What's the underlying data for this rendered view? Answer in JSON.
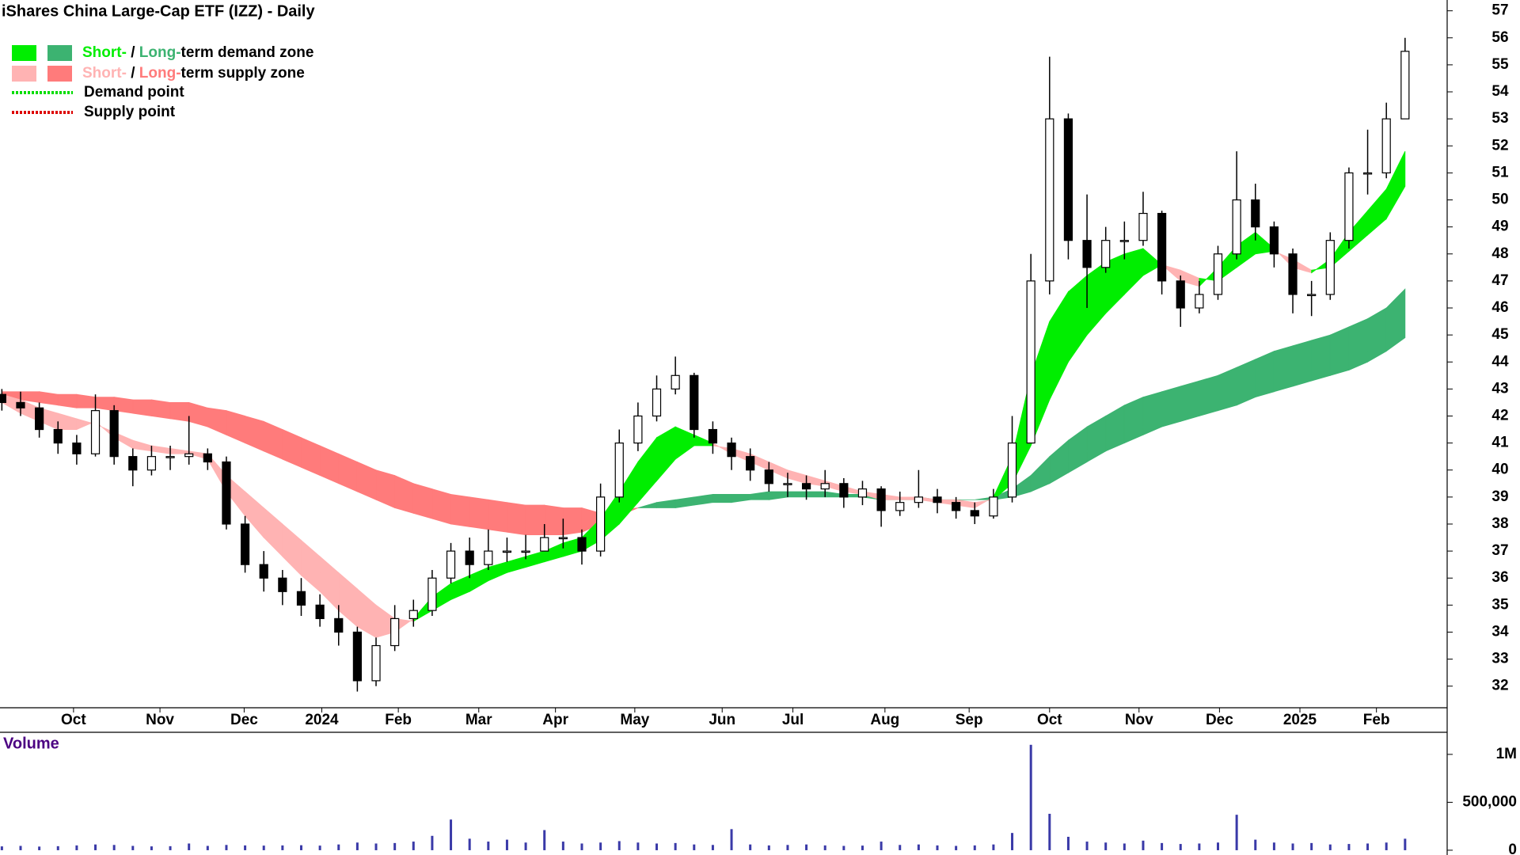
{
  "chart_data": {
    "type": "candlestick",
    "title": "iShares China Large-Cap ETF (IZZ) - Daily",
    "open": [
      42.8,
      42.5,
      42.3,
      41.5,
      41.0,
      40.6,
      42.2,
      40.5,
      40.0,
      40.5,
      40.5,
      40.6,
      40.3,
      38.0,
      36.5,
      36.0,
      35.5,
      35.0,
      34.5,
      34.0,
      32.2,
      33.5,
      34.5,
      34.8,
      36.0,
      37.0,
      36.5,
      37.0,
      37.0,
      37.0,
      37.5,
      37.5,
      37.0,
      39.0,
      41.0,
      42.0,
      43.0,
      43.5,
      41.5,
      41.0,
      40.5,
      40.0,
      39.5,
      39.5,
      39.3,
      39.5,
      39.0,
      39.3,
      38.5,
      38.8,
      39.0,
      38.8,
      38.5,
      38.3,
      39.0,
      41.0,
      47.0,
      53.0,
      48.5,
      47.5,
      48.5,
      48.5,
      49.5,
      47.0,
      46.0,
      46.5,
      48.0,
      50.0,
      49.0,
      48.0,
      46.5,
      46.5,
      48.5,
      51.0,
      51.0,
      53.0
    ],
    "high": [
      43.0,
      42.9,
      42.5,
      41.8,
      41.3,
      42.8,
      42.4,
      40.8,
      40.9,
      40.9,
      42.0,
      40.8,
      40.5,
      38.3,
      37.0,
      36.3,
      36.0,
      35.4,
      35.0,
      34.2,
      33.8,
      35.0,
      35.2,
      36.3,
      37.3,
      37.5,
      37.8,
      37.5,
      37.6,
      38.0,
      38.2,
      37.8,
      39.5,
      41.5,
      42.5,
      43.5,
      44.2,
      43.6,
      41.8,
      41.2,
      40.8,
      40.3,
      39.9,
      39.8,
      40.0,
      39.7,
      39.6,
      39.4,
      39.2,
      40.0,
      39.3,
      39.0,
      38.8,
      39.3,
      42.0,
      48.0,
      55.3,
      53.2,
      50.2,
      49.0,
      49.2,
      50.3,
      49.6,
      47.2,
      47.0,
      48.3,
      51.8,
      50.6,
      49.2,
      48.2,
      47.0,
      48.8,
      51.2,
      52.6,
      53.6,
      56.0
    ],
    "low": [
      42.2,
      42.0,
      41.2,
      40.6,
      40.2,
      40.5,
      40.2,
      39.4,
      39.8,
      40.0,
      40.2,
      40.0,
      37.8,
      36.2,
      35.5,
      35.0,
      34.6,
      34.2,
      33.5,
      31.8,
      32.0,
      33.3,
      34.2,
      34.6,
      35.8,
      36.0,
      36.3,
      36.6,
      36.7,
      37.0,
      37.1,
      36.5,
      36.8,
      38.8,
      40.7,
      41.8,
      42.8,
      41.2,
      40.6,
      40.0,
      39.6,
      39.2,
      39.0,
      38.9,
      39.0,
      38.6,
      38.7,
      37.9,
      38.3,
      38.6,
      38.4,
      38.2,
      38.0,
      38.2,
      38.8,
      41.0,
      46.5,
      47.8,
      46.0,
      47.3,
      47.8,
      48.3,
      46.5,
      45.3,
      45.8,
      46.3,
      47.8,
      48.5,
      47.5,
      45.8,
      45.7,
      46.3,
      48.2,
      50.2,
      50.8,
      53.0
    ],
    "close": [
      42.5,
      42.3,
      41.5,
      41.0,
      40.6,
      42.2,
      40.5,
      40.0,
      40.5,
      40.5,
      40.6,
      40.3,
      38.0,
      36.5,
      36.0,
      35.5,
      35.0,
      34.5,
      34.0,
      32.2,
      33.5,
      34.5,
      34.8,
      36.0,
      37.0,
      36.5,
      37.0,
      37.0,
      37.0,
      37.5,
      37.5,
      37.0,
      39.0,
      41.0,
      42.0,
      43.0,
      43.5,
      41.5,
      41.0,
      40.5,
      40.0,
      39.5,
      39.5,
      39.3,
      39.5,
      39.0,
      39.3,
      38.5,
      38.8,
      39.0,
      38.8,
      38.5,
      38.3,
      39.0,
      41.0,
      47.0,
      53.0,
      48.5,
      47.5,
      48.5,
      48.5,
      49.5,
      47.0,
      46.0,
      46.5,
      48.0,
      50.0,
      49.0,
      48.0,
      46.5,
      46.5,
      48.5,
      51.0,
      51.0,
      53.0,
      55.5
    ],
    "zones": {
      "long": {
        "fast": [
          42.7,
          42.6,
          42.5,
          42.4,
          42.3,
          42.3,
          42.2,
          42.1,
          42.0,
          41.9,
          41.8,
          41.6,
          41.3,
          41.0,
          40.7,
          40.4,
          40.1,
          39.8,
          39.5,
          39.2,
          38.9,
          38.6,
          38.4,
          38.2,
          38.0,
          37.9,
          37.8,
          37.7,
          37.6,
          37.6,
          37.6,
          37.7,
          38.0,
          38.3,
          38.6,
          38.8,
          38.9,
          39.0,
          39.1,
          39.1,
          39.1,
          39.2,
          39.2,
          39.2,
          39.2,
          39.1,
          39.1,
          39.0,
          39.0,
          39.0,
          38.9,
          38.9,
          38.9,
          39.0,
          39.3,
          39.8,
          40.5,
          41.1,
          41.6,
          42.0,
          42.4,
          42.7,
          42.9,
          43.1,
          43.3,
          43.5,
          43.8,
          44.1,
          44.4,
          44.6,
          44.8,
          45.0,
          45.3,
          45.6,
          46.0,
          46.7
        ],
        "slow": [
          42.9,
          42.9,
          42.9,
          42.8,
          42.8,
          42.7,
          42.7,
          42.6,
          42.6,
          42.5,
          42.5,
          42.3,
          42.2,
          42.0,
          41.8,
          41.5,
          41.2,
          40.9,
          40.6,
          40.3,
          40.0,
          39.8,
          39.5,
          39.3,
          39.1,
          39.0,
          38.9,
          38.8,
          38.7,
          38.7,
          38.6,
          38.6,
          38.4,
          38.5,
          38.6,
          38.6,
          38.6,
          38.7,
          38.8,
          38.8,
          38.9,
          38.9,
          39.0,
          39.0,
          39.0,
          39.0,
          39.0,
          38.9,
          38.9,
          38.9,
          38.9,
          38.9,
          38.9,
          38.9,
          39.0,
          39.2,
          39.5,
          39.9,
          40.3,
          40.7,
          41.0,
          41.3,
          41.6,
          41.8,
          42.0,
          42.2,
          42.4,
          42.7,
          42.9,
          43.1,
          43.3,
          43.5,
          43.7,
          44.0,
          44.4,
          44.9
        ]
      },
      "short": {
        "fast": [
          42.5,
          42.1,
          41.8,
          41.5,
          41.5,
          41.8,
          41.2,
          40.8,
          40.7,
          40.6,
          40.6,
          40.4,
          39.2,
          38.3,
          37.5,
          36.8,
          36.1,
          35.5,
          34.8,
          34.2,
          33.8,
          34.0,
          34.5,
          35.3,
          35.8,
          36.1,
          36.4,
          36.6,
          36.8,
          37.0,
          37.3,
          37.5,
          38.2,
          39.2,
          40.3,
          41.2,
          41.6,
          41.3,
          41.0,
          40.6,
          40.3,
          40.0,
          39.7,
          39.5,
          39.4,
          39.2,
          39.1,
          38.9,
          38.9,
          38.9,
          38.8,
          38.7,
          38.6,
          39.0,
          40.5,
          43.5,
          45.5,
          46.6,
          47.2,
          47.7,
          48.0,
          48.2,
          47.6,
          47.0,
          46.8,
          47.5,
          48.3,
          48.8,
          48.2,
          47.5,
          47.3,
          47.8,
          48.8,
          49.6,
          50.4,
          51.8
        ],
        "slow": [
          42.8,
          42.6,
          42.3,
          42.1,
          41.9,
          41.7,
          41.4,
          41.1,
          40.9,
          40.8,
          40.7,
          40.6,
          39.8,
          39.2,
          38.6,
          38.0,
          37.4,
          36.8,
          36.2,
          35.6,
          35.0,
          34.5,
          34.4,
          34.8,
          35.2,
          35.5,
          35.9,
          36.2,
          36.4,
          36.6,
          36.8,
          37.0,
          37.4,
          38.0,
          38.8,
          39.6,
          40.4,
          40.9,
          40.9,
          40.8,
          40.6,
          40.3,
          40.0,
          39.8,
          39.6,
          39.4,
          39.2,
          39.1,
          39.0,
          39.0,
          38.9,
          38.9,
          38.8,
          38.9,
          39.5,
          40.9,
          42.6,
          44.0,
          45.0,
          45.8,
          46.5,
          47.2,
          47.6,
          47.4,
          47.1,
          47.0,
          47.5,
          48.0,
          48.1,
          47.8,
          47.4,
          47.5,
          48.1,
          48.7,
          49.3,
          50.5
        ]
      }
    },
    "legend": [
      {
        "short": "Short-",
        "sep": " / ",
        "long": "Long-",
        "rest": "term demand zone",
        "short_color": "#00ee00",
        "long_color": "#3cb371"
      },
      {
        "short": "Short-",
        "sep": " / ",
        "long": "Long-",
        "rest": "term supply zone",
        "short_color": "#ffb3b3",
        "long_color": "#ff7b7b"
      },
      {
        "label": "Demand point",
        "color": "#00dd00"
      },
      {
        "label": "Supply point",
        "color": "#dd0000"
      }
    ],
    "xlim": [
      -0.1,
      77.25
    ],
    "xticks": [
      {
        "value": 3.83,
        "label": "Oct"
      },
      {
        "value": 8.45,
        "label": "Nov"
      },
      {
        "value": 12.95,
        "label": "Dec"
      },
      {
        "value": 17.1,
        "label": "2024"
      },
      {
        "value": 21.19,
        "label": "Feb"
      },
      {
        "value": 25.49,
        "label": "Mar"
      },
      {
        "value": 29.59,
        "label": "Apr"
      },
      {
        "value": 33.83,
        "label": "May"
      },
      {
        "value": 38.5,
        "label": "Jun"
      },
      {
        "value": 42.28,
        "label": "Jul"
      },
      {
        "value": 47.2,
        "label": "Aug"
      },
      {
        "value": 51.7,
        "label": "Sep"
      },
      {
        "value": 56.0,
        "label": "Oct"
      },
      {
        "value": 60.78,
        "label": "Nov"
      },
      {
        "value": 65.08,
        "label": "Dec"
      },
      {
        "value": 69.38,
        "label": "2025"
      },
      {
        "value": 73.47,
        "label": "Feb"
      }
    ],
    "ylim": [
      31.2,
      57.4
    ],
    "yticks": [
      32,
      33,
      34,
      35,
      36,
      37,
      38,
      39,
      40,
      41,
      42,
      43,
      44,
      45,
      46,
      47,
      48,
      49,
      50,
      51,
      52,
      53,
      54,
      55,
      56,
      57
    ],
    "candle_up_color": "#ffffff",
    "candle_down_color": "#000000",
    "volume": {
      "label": "Volume",
      "color": "#3a3aa8",
      "values": [
        40000,
        45000,
        38000,
        42000,
        50000,
        60000,
        55000,
        45000,
        40000,
        42000,
        70000,
        45000,
        55000,
        50000,
        48000,
        50000,
        52000,
        48000,
        60000,
        80000,
        70000,
        75000,
        90000,
        150000,
        320000,
        120000,
        90000,
        110000,
        80000,
        210000,
        90000,
        70000,
        80000,
        95000,
        80000,
        70000,
        75000,
        60000,
        55000,
        220000,
        60000,
        50000,
        55000,
        60000,
        50000,
        45000,
        48000,
        90000,
        55000,
        60000,
        50000,
        45000,
        50000,
        60000,
        180000,
        1100000,
        380000,
        140000,
        90000,
        80000,
        70000,
        100000,
        75000,
        65000,
        70000,
        80000,
        370000,
        110000,
        80000,
        70000,
        75000,
        60000,
        65000,
        70000,
        80000,
        120000
      ],
      "ylim": [
        -50000,
        1214000
      ],
      "yticks": [
        0,
        {
          "value": 500000,
          "label": "500,000"
        },
        {
          "value": 1000000,
          "label": "1M"
        }
      ]
    }
  }
}
